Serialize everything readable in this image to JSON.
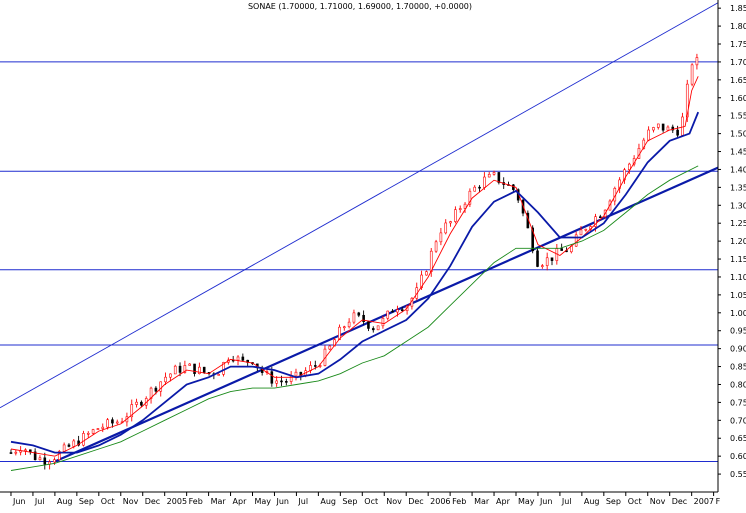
{
  "chart_data": {
    "type": "candlestick",
    "title": "SONAE (1.70000, 1.71000, 1.69000, 1.70000, +0.0000)",
    "xlabel": "",
    "ylabel": "",
    "ylim": [
      0.5,
      1.87
    ],
    "y_ticks": [
      "0.55",
      "0.60",
      "0.65",
      "0.70",
      "0.75",
      "0.80",
      "0.85",
      "0.90",
      "0.95",
      "1.00",
      "1.05",
      "1.10",
      "1.15",
      "1.20",
      "1.25",
      "1.30",
      "1.35",
      "1.40",
      "1.45",
      "1.50",
      "1.55",
      "1.60",
      "1.65",
      "1.70",
      "1.75",
      "1.80",
      "1.85"
    ],
    "x_ticks": [
      {
        "label": "Jun",
        "t": 0.0
      },
      {
        "label": "Jul",
        "t": 1.0
      },
      {
        "label": "Aug",
        "t": 2.0
      },
      {
        "label": "Sep",
        "t": 3.0
      },
      {
        "label": "Oct",
        "t": 4.0
      },
      {
        "label": "Nov",
        "t": 5.0
      },
      {
        "label": "Dec",
        "t": 6.0
      },
      {
        "label": "2005",
        "t": 7.0
      },
      {
        "label": "Feb",
        "t": 8.0
      },
      {
        "label": "Mar",
        "t": 9.0
      },
      {
        "label": "Apr",
        "t": 10.0
      },
      {
        "label": "May",
        "t": 11.0
      },
      {
        "label": "Jun",
        "t": 12.0
      },
      {
        "label": "Jul",
        "t": 13.0
      },
      {
        "label": "Aug",
        "t": 14.0
      },
      {
        "label": "Sep",
        "t": 15.0
      },
      {
        "label": "Oct",
        "t": 16.0
      },
      {
        "label": "Nov",
        "t": 17.0
      },
      {
        "label": "Dec",
        "t": 18.0
      },
      {
        "label": "2006",
        "t": 19.0
      },
      {
        "label": "Feb",
        "t": 20.0
      },
      {
        "label": "Mar",
        "t": 21.0
      },
      {
        "label": "Apr",
        "t": 22.0
      },
      {
        "label": "May",
        "t": 23.0
      },
      {
        "label": "Jun",
        "t": 24.0
      },
      {
        "label": "Jul",
        "t": 25.0
      },
      {
        "label": "Aug",
        "t": 26.0
      },
      {
        "label": "Sep",
        "t": 27.0
      },
      {
        "label": "Oct",
        "t": 28.0
      },
      {
        "label": "Nov",
        "t": 29.0
      },
      {
        "label": "Dec",
        "t": 30.0
      },
      {
        "label": "2007",
        "t": 31.0
      },
      {
        "label": "F",
        "t": 32.0
      }
    ],
    "xlim": [
      -0.5,
      32.2
    ],
    "horizontal_lines": [
      1.7,
      1.395,
      1.12,
      0.91,
      0.585
    ],
    "trendlines": [
      {
        "name": "",
        "from": [
          -0.5,
          0.735
        ],
        "to": [
          32.2,
          1.865
        ],
        "weight": "thin",
        "color": "#1f2ccf"
      },
      {
        "name": "",
        "from": [
          2.0,
          0.585
        ],
        "to": [
          32.2,
          1.405
        ],
        "weight": "thick",
        "color": "#0a1aa8"
      }
    ],
    "price_path": [
      [
        0.0,
        0.61
      ],
      [
        0.5,
        0.63
      ],
      [
        1.0,
        0.6
      ],
      [
        1.5,
        0.59
      ],
      [
        2.0,
        0.6
      ],
      [
        2.5,
        0.62
      ],
      [
        3.0,
        0.64
      ],
      [
        3.5,
        0.66
      ],
      [
        4.0,
        0.68
      ],
      [
        4.5,
        0.69
      ],
      [
        5.0,
        0.7
      ],
      [
        5.5,
        0.73
      ],
      [
        6.0,
        0.76
      ],
      [
        6.5,
        0.79
      ],
      [
        7.0,
        0.82
      ],
      [
        7.5,
        0.84
      ],
      [
        8.0,
        0.85
      ],
      [
        8.5,
        0.84
      ],
      [
        9.0,
        0.83
      ],
      [
        9.5,
        0.84
      ],
      [
        10.0,
        0.89
      ],
      [
        10.5,
        0.86
      ],
      [
        11.0,
        0.87
      ],
      [
        11.5,
        0.83
      ],
      [
        12.0,
        0.81
      ],
      [
        12.5,
        0.81
      ],
      [
        13.0,
        0.82
      ],
      [
        13.5,
        0.84
      ],
      [
        14.0,
        0.86
      ],
      [
        14.5,
        0.9
      ],
      [
        15.0,
        0.95
      ],
      [
        15.5,
        0.99
      ],
      [
        16.0,
        0.98
      ],
      [
        16.5,
        0.96
      ],
      [
        17.0,
        0.98
      ],
      [
        17.5,
        1.02
      ],
      [
        18.0,
        1.02
      ],
      [
        18.5,
        1.06
      ],
      [
        19.0,
        1.14
      ],
      [
        19.5,
        1.23
      ],
      [
        20.0,
        1.25
      ],
      [
        20.5,
        1.3
      ],
      [
        21.0,
        1.34
      ],
      [
        21.5,
        1.37
      ],
      [
        22.0,
        1.38
      ],
      [
        22.5,
        1.36
      ],
      [
        23.0,
        1.34
      ],
      [
        23.5,
        1.24
      ],
      [
        24.0,
        1.14
      ],
      [
        24.5,
        1.15
      ],
      [
        25.0,
        1.17
      ],
      [
        25.5,
        1.18
      ],
      [
        26.0,
        1.23
      ],
      [
        26.5,
        1.26
      ],
      [
        27.0,
        1.29
      ],
      [
        27.5,
        1.35
      ],
      [
        28.0,
        1.4
      ],
      [
        28.5,
        1.45
      ],
      [
        29.0,
        1.5
      ],
      [
        29.5,
        1.52
      ],
      [
        30.0,
        1.51
      ],
      [
        30.5,
        1.51
      ],
      [
        31.0,
        1.7
      ],
      [
        31.3,
        1.7
      ]
    ],
    "series": [
      {
        "name": "",
        "color": "#ff0000",
        "path": [
          [
            0.0,
            0.62
          ],
          [
            1.0,
            0.61
          ],
          [
            2.0,
            0.6
          ],
          [
            3.0,
            0.63
          ],
          [
            4.0,
            0.67
          ],
          [
            5.0,
            0.69
          ],
          [
            6.0,
            0.74
          ],
          [
            7.0,
            0.8
          ],
          [
            8.0,
            0.84
          ],
          [
            9.0,
            0.83
          ],
          [
            10.0,
            0.87
          ],
          [
            11.0,
            0.86
          ],
          [
            12.0,
            0.82
          ],
          [
            13.0,
            0.82
          ],
          [
            14.0,
            0.85
          ],
          [
            15.0,
            0.93
          ],
          [
            16.0,
            0.98
          ],
          [
            17.0,
            0.97
          ],
          [
            18.0,
            1.01
          ],
          [
            19.0,
            1.1
          ],
          [
            20.0,
            1.22
          ],
          [
            21.0,
            1.32
          ],
          [
            22.0,
            1.37
          ],
          [
            23.0,
            1.35
          ],
          [
            24.0,
            1.19
          ],
          [
            25.0,
            1.16
          ],
          [
            26.0,
            1.21
          ],
          [
            27.0,
            1.27
          ],
          [
            28.0,
            1.38
          ],
          [
            29.0,
            1.48
          ],
          [
            30.0,
            1.51
          ],
          [
            30.7,
            1.52
          ],
          [
            31.0,
            1.62
          ],
          [
            31.3,
            1.66
          ]
        ]
      },
      {
        "name": "",
        "color": "#0a1aa8",
        "path": [
          [
            0.0,
            0.64
          ],
          [
            1.0,
            0.63
          ],
          [
            2.0,
            0.61
          ],
          [
            3.0,
            0.61
          ],
          [
            4.0,
            0.63
          ],
          [
            5.0,
            0.66
          ],
          [
            6.0,
            0.7
          ],
          [
            7.0,
            0.75
          ],
          [
            8.0,
            0.8
          ],
          [
            9.0,
            0.82
          ],
          [
            10.0,
            0.85
          ],
          [
            11.0,
            0.85
          ],
          [
            12.0,
            0.84
          ],
          [
            13.0,
            0.82
          ],
          [
            14.0,
            0.83
          ],
          [
            15.0,
            0.87
          ],
          [
            16.0,
            0.92
          ],
          [
            17.0,
            0.95
          ],
          [
            18.0,
            0.98
          ],
          [
            19.0,
            1.04
          ],
          [
            20.0,
            1.13
          ],
          [
            21.0,
            1.24
          ],
          [
            22.0,
            1.31
          ],
          [
            23.0,
            1.34
          ],
          [
            24.0,
            1.28
          ],
          [
            25.0,
            1.21
          ],
          [
            26.0,
            1.21
          ],
          [
            27.0,
            1.25
          ],
          [
            28.0,
            1.33
          ],
          [
            29.0,
            1.42
          ],
          [
            30.0,
            1.48
          ],
          [
            30.9,
            1.5
          ],
          [
            31.3,
            1.56
          ]
        ]
      },
      {
        "name": "",
        "color": "#1a8a1a",
        "path": [
          [
            0.0,
            0.56
          ],
          [
            1.0,
            0.57
          ],
          [
            2.0,
            0.58
          ],
          [
            3.0,
            0.6
          ],
          [
            4.0,
            0.62
          ],
          [
            5.0,
            0.64
          ],
          [
            6.0,
            0.67
          ],
          [
            7.0,
            0.7
          ],
          [
            8.0,
            0.73
          ],
          [
            9.0,
            0.76
          ],
          [
            10.0,
            0.78
          ],
          [
            11.0,
            0.79
          ],
          [
            12.0,
            0.79
          ],
          [
            13.0,
            0.8
          ],
          [
            14.0,
            0.81
          ],
          [
            15.0,
            0.83
          ],
          [
            16.0,
            0.86
          ],
          [
            17.0,
            0.88
          ],
          [
            18.0,
            0.92
          ],
          [
            19.0,
            0.96
          ],
          [
            20.0,
            1.02
          ],
          [
            21.0,
            1.08
          ],
          [
            22.0,
            1.14
          ],
          [
            23.0,
            1.18
          ],
          [
            24.0,
            1.18
          ],
          [
            25.0,
            1.18
          ],
          [
            26.0,
            1.2
          ],
          [
            27.0,
            1.23
          ],
          [
            28.0,
            1.28
          ],
          [
            29.0,
            1.33
          ],
          [
            30.0,
            1.37
          ],
          [
            31.3,
            1.41
          ]
        ]
      }
    ],
    "grid": false,
    "legend": "none",
    "colors": {
      "up": "#ff0000",
      "down": "#000000",
      "hline": "#1f2ccf"
    }
  }
}
